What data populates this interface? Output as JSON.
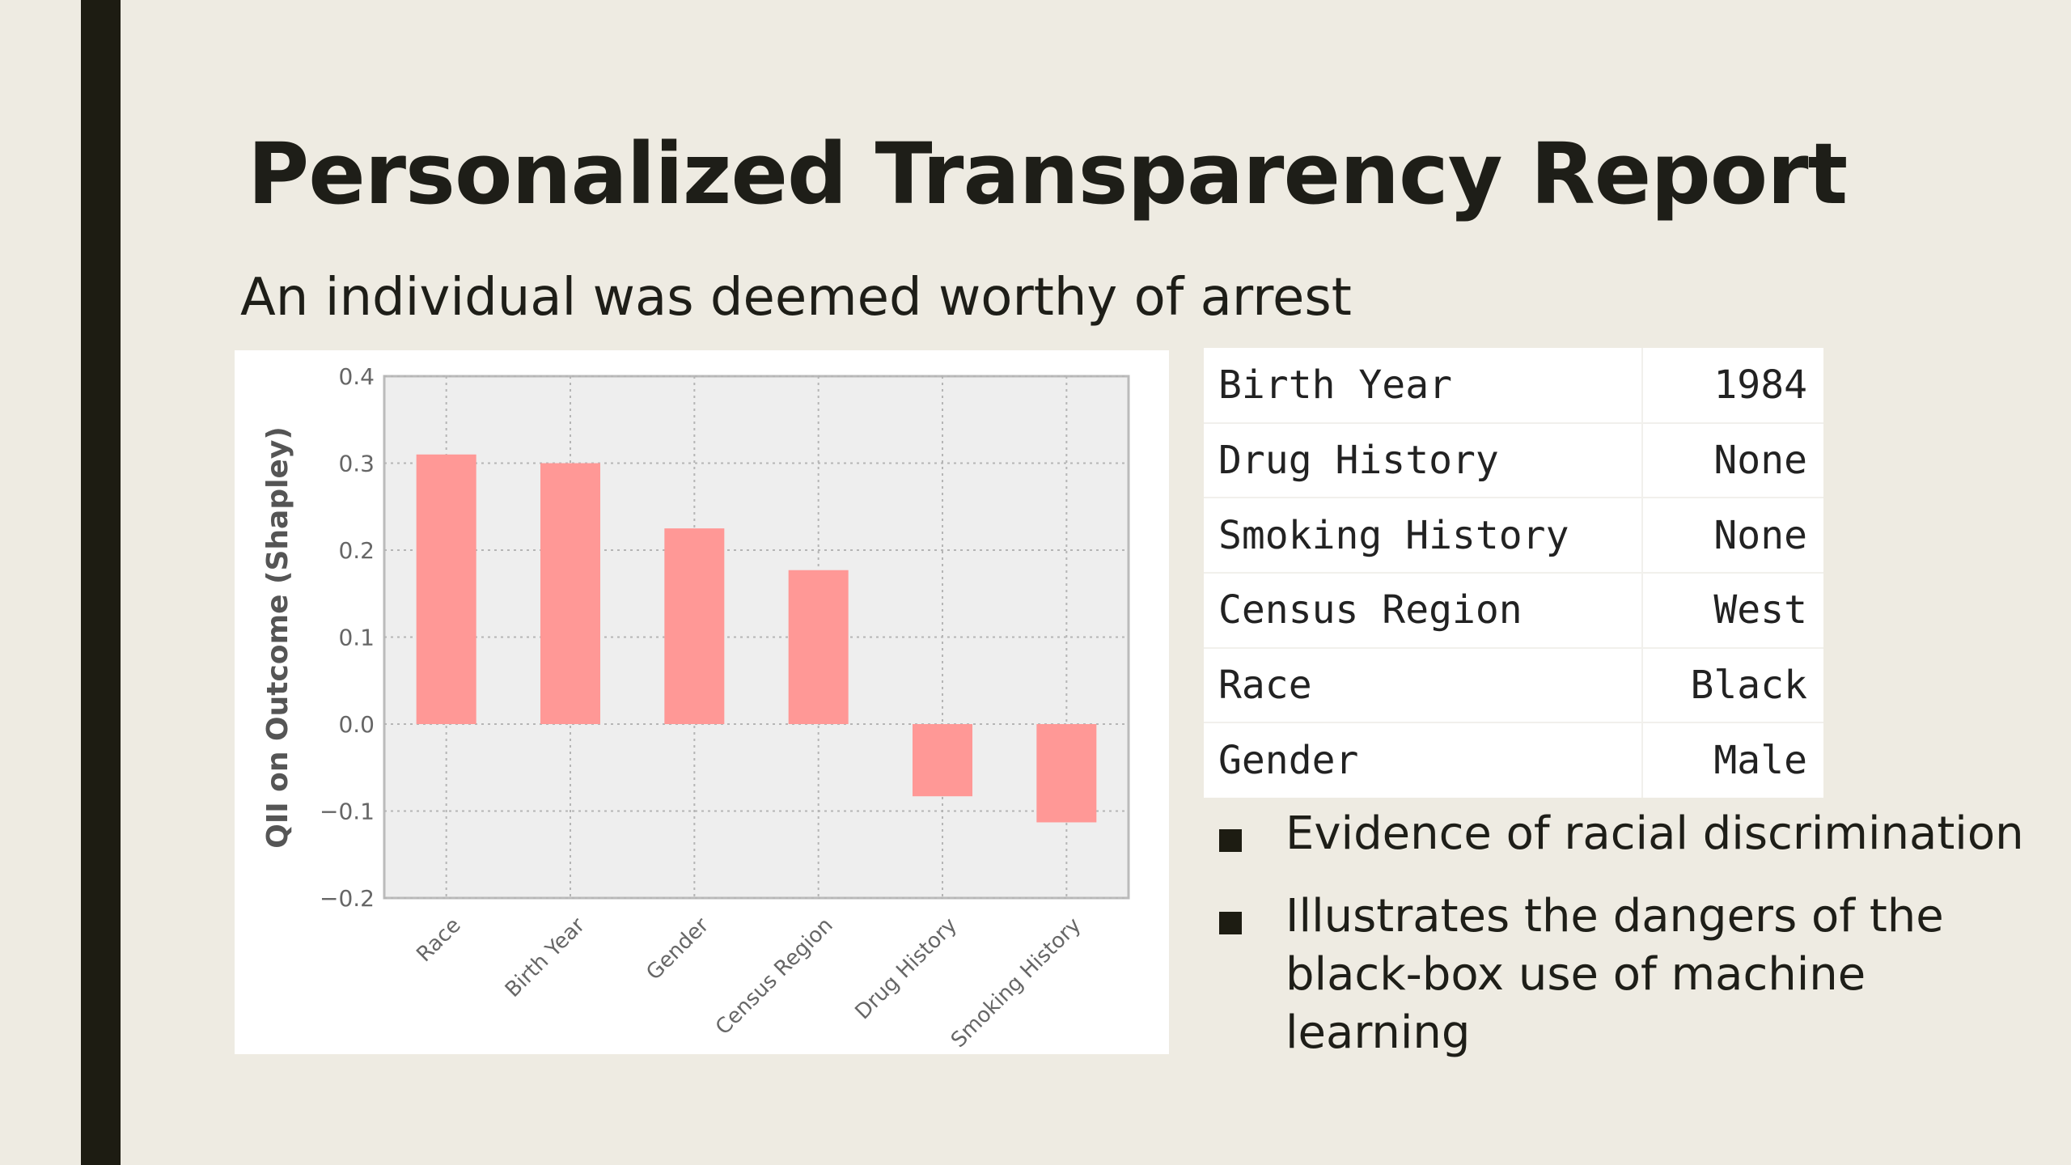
{
  "slide": {
    "title": "Personalized Transparency Report",
    "subtitle": "An individual was deemed worthy of arrest",
    "accent_color": "#1d1c12",
    "background_color": "#eeebe2"
  },
  "table": {
    "rows": [
      {
        "key": "Birth Year",
        "value": "1984"
      },
      {
        "key": "Drug History",
        "value": "None"
      },
      {
        "key": "Smoking History",
        "value": "None"
      },
      {
        "key": "Census Region",
        "value": "West"
      },
      {
        "key": "Race",
        "value": "Black"
      },
      {
        "key": "Gender",
        "value": "Male"
      }
    ]
  },
  "bullets": [
    {
      "text": "Evidence of racial discrimination",
      "icon": "square-bullet-icon"
    },
    {
      "text": "Illustrates the dangers of the black-box use of machine learning",
      "icon": "square-bullet-icon"
    }
  ],
  "chart_data": {
    "type": "bar",
    "title": "",
    "xlabel": "",
    "ylabel": "QII on Outcome (Shapley)",
    "categories": [
      "Race",
      "Birth Year",
      "Gender",
      "Census Region",
      "Drug History",
      "Smoking History"
    ],
    "values": [
      0.31,
      0.3,
      0.225,
      0.177,
      -0.083,
      -0.113
    ],
    "ylim": [
      -0.2,
      0.4
    ],
    "yticks": [
      "0.4",
      "0.3",
      "0.2",
      "0.1",
      "0.0",
      "−0.1",
      "−0.2"
    ],
    "ytick_values": [
      0.4,
      0.3,
      0.2,
      0.1,
      0.0,
      -0.1,
      -0.2
    ],
    "grid": true,
    "bar_color": "#ff9896"
  }
}
